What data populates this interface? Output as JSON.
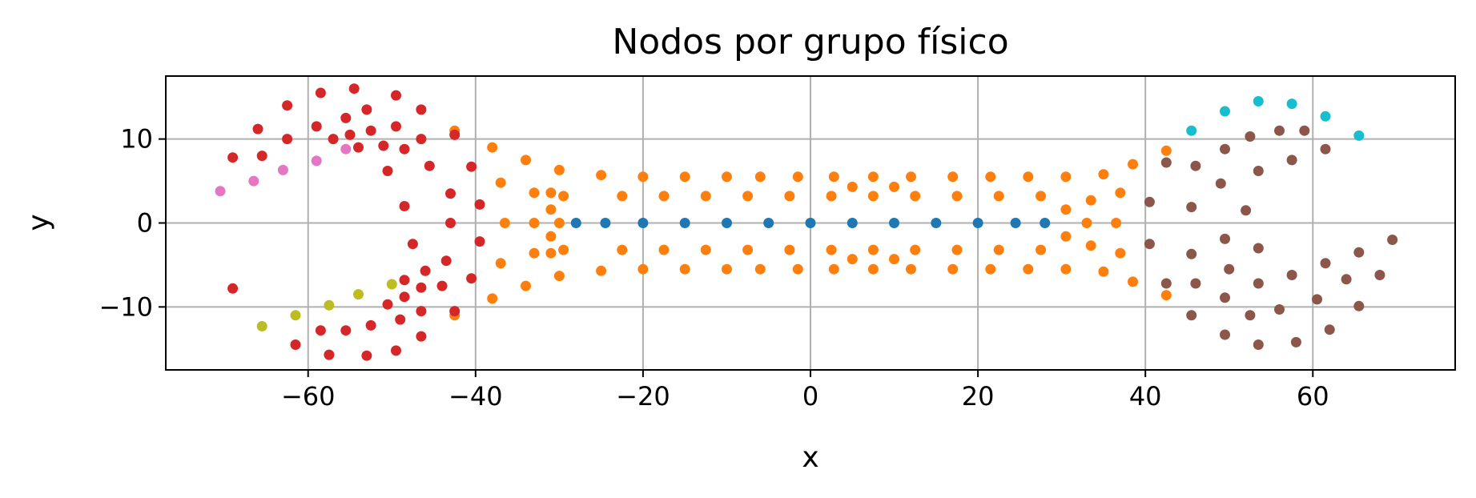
{
  "chart_data": {
    "type": "scatter",
    "title": "Nodos por grupo físico",
    "xlabel": "x",
    "ylabel": "y",
    "xlim": [
      -77,
      77
    ],
    "ylim": [
      -17.5,
      17.5
    ],
    "xticks": [
      -60,
      -40,
      -20,
      0,
      20,
      40,
      60
    ],
    "yticks": [
      -10,
      0,
      10
    ],
    "xtick_labels": [
      "−60",
      "−40",
      "−20",
      "0",
      "20",
      "40",
      "60"
    ],
    "ytick_labels": [
      "−10",
      "0",
      "10"
    ],
    "grid": true,
    "series": [
      {
        "color": "#1f77b4",
        "points": [
          [
            -28,
            0
          ],
          [
            -24.5,
            0
          ],
          [
            -20,
            0
          ],
          [
            -15,
            0
          ],
          [
            -10,
            0
          ],
          [
            -5,
            0
          ],
          [
            0,
            0
          ],
          [
            5,
            0
          ],
          [
            10,
            0
          ],
          [
            15,
            0
          ],
          [
            20,
            0
          ],
          [
            24.5,
            0
          ],
          [
            28,
            0
          ]
        ]
      },
      {
        "color": "#ff7f0e",
        "points": [
          [
            -42.5,
            11
          ],
          [
            -38,
            9
          ],
          [
            -34,
            7.5
          ],
          [
            -30,
            6.3
          ],
          [
            -25,
            5.7
          ],
          [
            -20,
            5.5
          ],
          [
            -15,
            5.5
          ],
          [
            -10,
            5.5
          ],
          [
            -6,
            5.5
          ],
          [
            -1.5,
            5.5
          ],
          [
            2.8,
            5.5
          ],
          [
            7.5,
            5.5
          ],
          [
            12,
            5.5
          ],
          [
            17,
            5.5
          ],
          [
            21.5,
            5.5
          ],
          [
            26,
            5.5
          ],
          [
            30.5,
            5.5
          ],
          [
            35,
            5.8
          ],
          [
            38.5,
            7
          ],
          [
            42.5,
            8.6
          ],
          [
            -37,
            4.8
          ],
          [
            -33,
            3.6
          ],
          [
            -29.5,
            3.2
          ],
          [
            -22.5,
            3.2
          ],
          [
            -17.5,
            3.2
          ],
          [
            -12.5,
            3.2
          ],
          [
            -7.5,
            3.2
          ],
          [
            -2.5,
            3.2
          ],
          [
            2.5,
            3.2
          ],
          [
            5,
            4.3
          ],
          [
            7.5,
            3.2
          ],
          [
            10,
            4.3
          ],
          [
            12.5,
            3.2
          ],
          [
            17.5,
            3.2
          ],
          [
            22.5,
            3.2
          ],
          [
            27.5,
            3.2
          ],
          [
            30.5,
            1.6
          ],
          [
            33.5,
            2.7
          ],
          [
            37,
            3.6
          ],
          [
            -31,
            3.6
          ],
          [
            -31,
            1.6
          ],
          [
            -36.5,
            0
          ],
          [
            -33,
            0
          ],
          [
            -30,
            0
          ],
          [
            33,
            0
          ],
          [
            36.5,
            0
          ],
          [
            -37,
            -4.8
          ],
          [
            -33,
            -3.6
          ],
          [
            -29.5,
            -3.2
          ],
          [
            -22.5,
            -3.2
          ],
          [
            -17.5,
            -3.2
          ],
          [
            -12.5,
            -3.2
          ],
          [
            -7.5,
            -3.2
          ],
          [
            -2.5,
            -3.2
          ],
          [
            2.5,
            -3.2
          ],
          [
            5,
            -4.3
          ],
          [
            7.5,
            -3.2
          ],
          [
            10,
            -4.3
          ],
          [
            12.5,
            -3.2
          ],
          [
            17.5,
            -3.2
          ],
          [
            22.5,
            -3.2
          ],
          [
            27.5,
            -3.2
          ],
          [
            30.5,
            -1.6
          ],
          [
            33.5,
            -2.7
          ],
          [
            37,
            -3.6
          ],
          [
            -31,
            -3.6
          ],
          [
            -31,
            -1.6
          ],
          [
            -42.5,
            -11
          ],
          [
            -38,
            -9
          ],
          [
            -34,
            -7.5
          ],
          [
            -30,
            -6.3
          ],
          [
            -25,
            -5.7
          ],
          [
            -20,
            -5.5
          ],
          [
            -15,
            -5.5
          ],
          [
            -10,
            -5.5
          ],
          [
            -6,
            -5.5
          ],
          [
            -1.5,
            -5.5
          ],
          [
            2.8,
            -5.5
          ],
          [
            7.5,
            -5.5
          ],
          [
            12,
            -5.5
          ],
          [
            17,
            -5.5
          ],
          [
            21.5,
            -5.5
          ],
          [
            26,
            -5.5
          ],
          [
            30.5,
            -5.5
          ],
          [
            35,
            -5.8
          ],
          [
            38.5,
            -7
          ],
          [
            42.5,
            -8.6
          ]
        ]
      },
      {
        "color": "#d62728",
        "points": [
          [
            -69,
            7.8
          ],
          [
            -65.5,
            8
          ],
          [
            -66,
            11.2
          ],
          [
            -62.5,
            10
          ],
          [
            -62.5,
            14
          ],
          [
            -58.5,
            15.5
          ],
          [
            -59,
            11.5
          ],
          [
            -57,
            10
          ],
          [
            -55.5,
            12.5
          ],
          [
            -54.5,
            16
          ],
          [
            -53,
            13.5
          ],
          [
            -52.5,
            11
          ],
          [
            -55,
            10.5
          ],
          [
            -54,
            9
          ],
          [
            -51,
            9.2
          ],
          [
            -50.5,
            6.2
          ],
          [
            -49.5,
            15.2
          ],
          [
            -49.5,
            11.5
          ],
          [
            -48.5,
            8.8
          ],
          [
            -46.5,
            13.5
          ],
          [
            -46.5,
            10
          ],
          [
            -45.5,
            6.8
          ],
          [
            -42.5,
            10.5
          ],
          [
            -48.5,
            2
          ],
          [
            -43,
            3.5
          ],
          [
            -43,
            0
          ],
          [
            -40.5,
            6.7
          ],
          [
            -39.5,
            2.2
          ],
          [
            -69,
            -7.8
          ],
          [
            -61.5,
            -14.5
          ],
          [
            -58.5,
            -12.8
          ],
          [
            -57.5,
            -15.7
          ],
          [
            -55.5,
            -12.8
          ],
          [
            -53,
            -15.8
          ],
          [
            -52.5,
            -12.2
          ],
          [
            -50.5,
            -9.7
          ],
          [
            -49.5,
            -15.2
          ],
          [
            -49,
            -11.5
          ],
          [
            -48.5,
            -8.8
          ],
          [
            -48.5,
            -6.8
          ],
          [
            -47.5,
            -2.5
          ],
          [
            -46.5,
            -13.5
          ],
          [
            -46.5,
            -10.5
          ],
          [
            -46.5,
            -7.7
          ],
          [
            -46,
            -5.7
          ],
          [
            -44,
            -7.5
          ],
          [
            -43.5,
            -4.5
          ],
          [
            -42.5,
            -10.5
          ],
          [
            -40.5,
            -6.6
          ],
          [
            -39.5,
            -2.2
          ]
        ]
      },
      {
        "color": "#e377c2",
        "points": [
          [
            -70.5,
            3.8
          ],
          [
            -66.5,
            5
          ],
          [
            -63,
            6.3
          ],
          [
            -59,
            7.4
          ],
          [
            -55.5,
            8.8
          ]
        ]
      },
      {
        "color": "#bcbd22",
        "points": [
          [
            -65.5,
            -12.3
          ],
          [
            -61.5,
            -11
          ],
          [
            -57.5,
            -9.8
          ],
          [
            -54,
            -8.5
          ],
          [
            -50,
            -7.3
          ]
        ]
      },
      {
        "color": "#17becf",
        "points": [
          [
            45.5,
            11
          ],
          [
            49.5,
            13.3
          ],
          [
            53.5,
            14.5
          ],
          [
            57.5,
            14.2
          ],
          [
            61.5,
            12.7
          ],
          [
            65.5,
            10.4
          ]
        ]
      },
      {
        "color": "#8c564b",
        "points": [
          [
            42.5,
            7.2
          ],
          [
            46,
            6.8
          ],
          [
            49.5,
            8.8
          ],
          [
            52.5,
            10.3
          ],
          [
            53.5,
            6.2
          ],
          [
            56,
            11
          ],
          [
            57.5,
            7.5
          ],
          [
            59,
            11
          ],
          [
            61.5,
            8.8
          ],
          [
            49,
            4.7
          ],
          [
            52,
            1.5
          ],
          [
            45.5,
            1.9
          ],
          [
            40.5,
            2.5
          ],
          [
            40.5,
            -2.5
          ],
          [
            42.5,
            -7.2
          ],
          [
            45.5,
            -3.7
          ],
          [
            46,
            -7.2
          ],
          [
            45.5,
            -11
          ],
          [
            49.5,
            -13.3
          ],
          [
            49.5,
            -8.9
          ],
          [
            49.5,
            -1.9
          ],
          [
            50,
            -5.5
          ],
          [
            52.5,
            -11
          ],
          [
            53.5,
            -3
          ],
          [
            53.5,
            -7.2
          ],
          [
            53.5,
            -14.5
          ],
          [
            56,
            -10.3
          ],
          [
            57.5,
            -6.2
          ],
          [
            58,
            -14.2
          ],
          [
            60.5,
            -9.1
          ],
          [
            61.5,
            -4.8
          ],
          [
            62,
            -12.7
          ],
          [
            64,
            -6.7
          ],
          [
            65.5,
            -3.5
          ],
          [
            65.5,
            -9.9
          ],
          [
            68,
            -6.2
          ],
          [
            69.5,
            -2
          ]
        ]
      }
    ]
  }
}
